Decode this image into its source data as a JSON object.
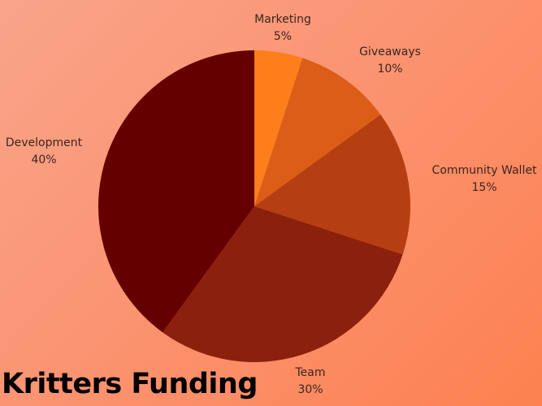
{
  "chart_data": {
    "type": "pie",
    "title": "Kritters Funding",
    "slices": [
      {
        "label": "Marketing",
        "value": 5,
        "value_label": "5%",
        "color": "#fe7e1b"
      },
      {
        "label": "Giveaways",
        "value": 10,
        "value_label": "10%",
        "color": "#dc5d17"
      },
      {
        "label": "Community Wallet",
        "value": 15,
        "value_label": "15%",
        "color": "#b53f12"
      },
      {
        "label": "Team",
        "value": 30,
        "value_label": "30%",
        "color": "#8b200d"
      },
      {
        "label": "Development",
        "value": 40,
        "value_label": "40%",
        "color": "#650000"
      }
    ],
    "start_direction": "top",
    "direction": "clockwise"
  }
}
